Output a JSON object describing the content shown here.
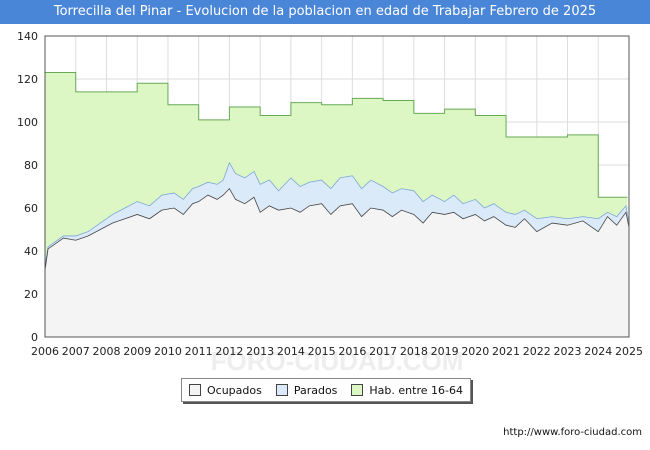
{
  "title": "Torrecilla del Pinar - Evolucion de la poblacion en edad de Trabajar Febrero de 2025",
  "source": "http://www.foro-ciudad.com",
  "watermark": "FORO-CIUDAD.COM",
  "colors": {
    "title_bg": "#4a86d8",
    "hab_fill": "#ddf7c4",
    "hab_line": "#66aa55",
    "parados_fill": "#dbeaf9",
    "parados_line": "#7aa6d6",
    "ocupados_fill": "#f4f4f4",
    "ocupados_line": "#444444"
  },
  "chart_data": {
    "type": "area",
    "title": "Torrecilla del Pinar - Evolucion de la poblacion en edad de Trabajar Febrero de 2025",
    "xlabel": "",
    "ylabel": "",
    "xlim": [
      2006,
      2025
    ],
    "ylim": [
      0,
      140
    ],
    "yticks": [
      0,
      20,
      40,
      60,
      80,
      100,
      120,
      140
    ],
    "xticks": [
      "2006",
      "2007",
      "2008",
      "2009",
      "2010",
      "2011",
      "2012",
      "2013",
      "2014",
      "2015",
      "2016",
      "2017",
      "2018",
      "2019",
      "2020",
      "2021",
      "2022",
      "2023",
      "2024",
      "2025"
    ],
    "grid": true,
    "legend": [
      "Ocupados",
      "Parados",
      "Hab. entre 16-64"
    ],
    "legend_position": "bottom",
    "series": [
      {
        "name": "Hab. entre 16-64",
        "step": true,
        "x": [
          2006,
          2007,
          2008,
          2009,
          2010,
          2011,
          2012,
          2013,
          2014,
          2015,
          2016,
          2017,
          2018,
          2019,
          2020,
          2021,
          2022,
          2023,
          2024
        ],
        "values": [
          123,
          114,
          114,
          118,
          108,
          101,
          107,
          103,
          109,
          108,
          111,
          110,
          104,
          106,
          103,
          93,
          93,
          94,
          65
        ]
      },
      {
        "name": "Parados",
        "note": "labour force (ocupados + parados)",
        "x": [
          2006.0,
          2006.1,
          2006.3,
          2006.6,
          2007.0,
          2007.4,
          2007.8,
          2008.2,
          2008.6,
          2009.0,
          2009.4,
          2009.8,
          2010.2,
          2010.5,
          2010.8,
          2011.0,
          2011.3,
          2011.6,
          2011.8,
          2012.0,
          2012.2,
          2012.5,
          2012.8,
          2013.0,
          2013.3,
          2013.6,
          2014.0,
          2014.3,
          2014.6,
          2015.0,
          2015.3,
          2015.6,
          2016.0,
          2016.3,
          2016.6,
          2017.0,
          2017.3,
          2017.6,
          2018.0,
          2018.3,
          2018.6,
          2019.0,
          2019.3,
          2019.6,
          2020.0,
          2020.3,
          2020.6,
          2021.0,
          2021.3,
          2021.6,
          2022.0,
          2022.5,
          2023.0,
          2023.5,
          2024.0,
          2024.3,
          2024.6,
          2024.9,
          2025.0
        ],
        "values": [
          33,
          42,
          44,
          47,
          47,
          49,
          53,
          57,
          60,
          63,
          61,
          66,
          67,
          64,
          69,
          70,
          72,
          71,
          73,
          81,
          76,
          74,
          77,
          71,
          73,
          68,
          74,
          70,
          72,
          73,
          69,
          74,
          75,
          69,
          73,
          70,
          67,
          69,
          68,
          63,
          66,
          63,
          66,
          62,
          64,
          60,
          62,
          58,
          57,
          59,
          55,
          56,
          55,
          56,
          55,
          58,
          56,
          61,
          53
        ]
      },
      {
        "name": "Ocupados",
        "x": [
          2006.0,
          2006.1,
          2006.3,
          2006.6,
          2007.0,
          2007.4,
          2007.8,
          2008.2,
          2008.6,
          2009.0,
          2009.4,
          2009.8,
          2010.2,
          2010.5,
          2010.8,
          2011.0,
          2011.3,
          2011.6,
          2011.8,
          2012.0,
          2012.2,
          2012.5,
          2012.8,
          2013.0,
          2013.3,
          2013.6,
          2014.0,
          2014.3,
          2014.6,
          2015.0,
          2015.3,
          2015.6,
          2016.0,
          2016.3,
          2016.6,
          2017.0,
          2017.3,
          2017.6,
          2018.0,
          2018.3,
          2018.6,
          2019.0,
          2019.3,
          2019.6,
          2020.0,
          2020.3,
          2020.6,
          2021.0,
          2021.3,
          2021.6,
          2022.0,
          2022.5,
          2023.0,
          2023.5,
          2024.0,
          2024.3,
          2024.6,
          2024.9,
          2025.0
        ],
        "values": [
          31,
          41,
          43,
          46,
          45,
          47,
          50,
          53,
          55,
          57,
          55,
          59,
          60,
          57,
          62,
          63,
          66,
          64,
          66,
          69,
          64,
          62,
          65,
          58,
          61,
          59,
          60,
          58,
          61,
          62,
          57,
          61,
          62,
          56,
          60,
          59,
          56,
          59,
          57,
          53,
          58,
          57,
          58,
          55,
          57,
          54,
          56,
          52,
          51,
          55,
          49,
          53,
          52,
          54,
          49,
          56,
          52,
          58,
          51
        ]
      }
    ]
  }
}
